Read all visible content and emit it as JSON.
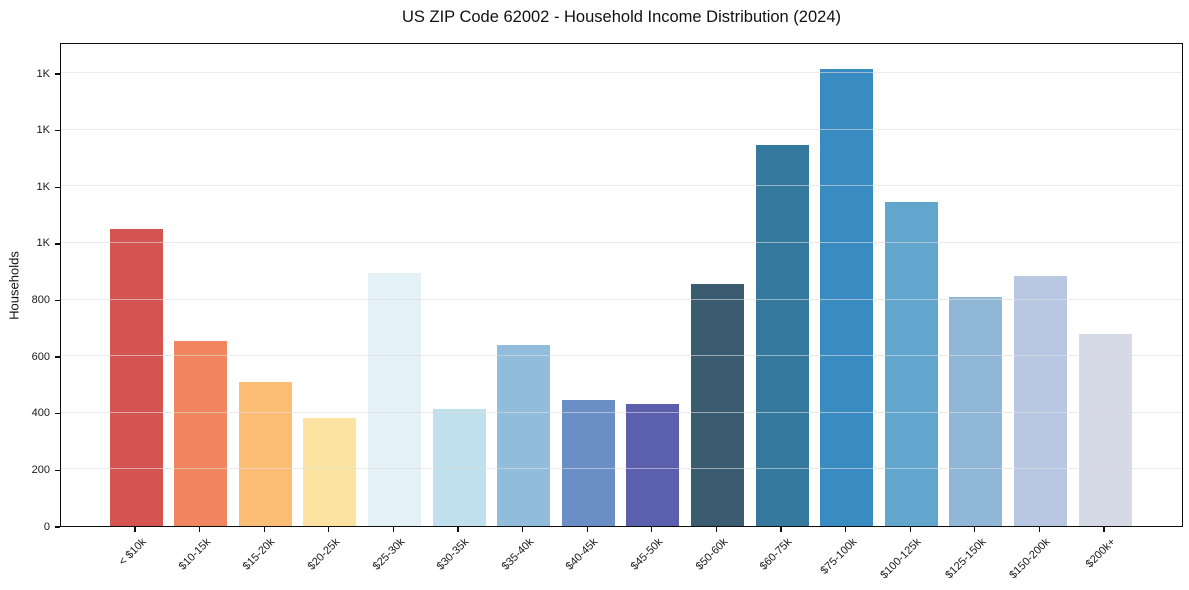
{
  "chart_data": {
    "type": "bar",
    "title": "US ZIP Code 62002 - Household Income Distribution (2024)",
    "xlabel": "",
    "ylabel": "Households",
    "categories": [
      "< $10k",
      "$10-15k",
      "$15-20k",
      "$20-25k",
      "$25-30k",
      "$30-35k",
      "$35-40k",
      "$40-45k",
      "$45-50k",
      "$50-60k",
      "$60-75k",
      "$75-100k",
      "$100-125k",
      "$125-150k",
      "$150-200k",
      "$200k+"
    ],
    "values": [
      1050,
      655,
      510,
      380,
      895,
      415,
      640,
      445,
      430,
      855,
      1345,
      1615,
      1145,
      810,
      885,
      680
    ],
    "bar_colors": [
      "#d45452",
      "#f0855f",
      "#fbbd74",
      "#fce3a2",
      "#e4f1f7",
      "#bfe0ec",
      "#92bcdb",
      "#6a8ec6",
      "#5c5fad",
      "#3a5b70",
      "#36799f",
      "#398cc1",
      "#62a6ce",
      "#91b7d8",
      "#b8c8e2",
      "#d6d9e6"
    ],
    "y_ticks": [
      {
        "value": 0,
        "label": "0"
      },
      {
        "value": 200,
        "label": "200"
      },
      {
        "value": 400,
        "label": "400"
      },
      {
        "value": 600,
        "label": "600"
      },
      {
        "value": 800,
        "label": "800"
      },
      {
        "value": 1000,
        "label": "1K"
      },
      {
        "value": 1200,
        "label": "1K"
      },
      {
        "value": 1400,
        "label": "1K"
      },
      {
        "value": 1600,
        "label": "1K"
      }
    ],
    "ylim": [
      0,
      1710
    ],
    "grid": "horizontal",
    "legend": "none",
    "spine_color": "#0d0d0d",
    "gridline_color": "#dedede"
  }
}
